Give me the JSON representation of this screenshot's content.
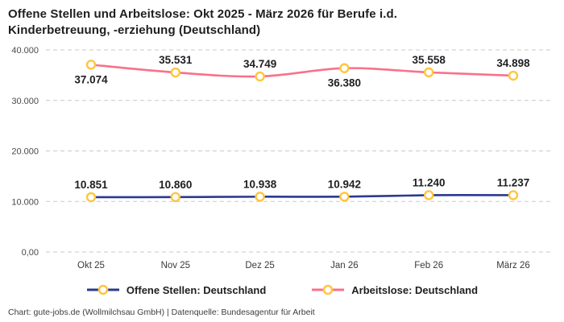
{
  "page": {
    "footer": "Chart: gute-jobs.de (Wollmilchsau GmbH) | Datenquelle: Bundesagentur für Arbeit"
  },
  "chart_data": {
    "type": "line",
    "title": "Offene Stellen und Arbeitslose: Okt 2025 - März 2026 für Berufe i.d. Kinderbetreuung, -erziehung (Deutschland)",
    "categories": [
      "Okt 25",
      "Nov 25",
      "Dez 25",
      "Jan 26",
      "Feb 26",
      "März 26"
    ],
    "series": [
      {
        "name": "Offene Stellen: Deutschland",
        "color": "#2B3A8F",
        "values": [
          10851,
          10860,
          10938,
          10942,
          11240,
          11237
        ],
        "labels": [
          "10.851",
          "10.860",
          "10.938",
          "10.942",
          "11.240",
          "11.237"
        ],
        "label_position": [
          "above",
          "above",
          "above",
          "above",
          "above",
          "above"
        ]
      },
      {
        "name": "Arbeitslose: Deutschland",
        "color": "#F8718C",
        "values": [
          37074,
          35531,
          34749,
          36380,
          35558,
          34898
        ],
        "labels": [
          "37.074",
          "35.531",
          "34.749",
          "36.380",
          "35.558",
          "34.898"
        ],
        "label_position": [
          "below",
          "above",
          "above",
          "below",
          "above",
          "above"
        ]
      }
    ],
    "y_ticks": [
      {
        "value": 0,
        "label": "0,00"
      },
      {
        "value": 10000,
        "label": "10.000"
      },
      {
        "value": 20000,
        "label": "20.000"
      },
      {
        "value": 30000,
        "label": "30.000"
      },
      {
        "value": 40000,
        "label": "40.000"
      }
    ],
    "ylim": [
      0,
      40000
    ],
    "grid": "horizontal-dashed",
    "grid_color": "#c9c9c9",
    "legend_position": "bottom",
    "marker": {
      "shape": "circle",
      "ring_color": "#FFC53D",
      "fill": "#FFFFFF"
    }
  }
}
